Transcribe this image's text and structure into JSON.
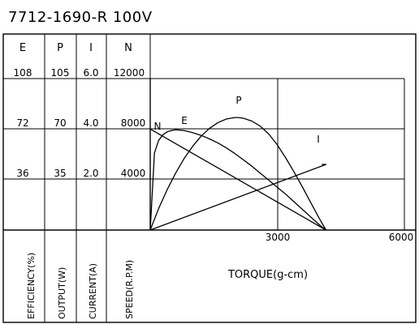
{
  "title": "7712-1690-R   100V",
  "column_headers": [
    "E",
    "P",
    "I",
    "N"
  ],
  "rows": [
    [
      "108",
      "105",
      "6.0",
      "12000"
    ],
    [
      "72",
      "70",
      "4.0",
      "8000"
    ],
    [
      "36",
      "35",
      "2.0",
      "4000"
    ]
  ],
  "axis_names": [
    "EFFICIENCY(%)",
    "OUTPUT(W)",
    "CURRENT(A)",
    "SPEED(R.P.M)"
  ],
  "xlabel": "TORQUE(g-cm)",
  "x_ticks": [
    "3000",
    "6000"
  ],
  "chart_data": {
    "type": "line",
    "title": "7712-1690-R   100V",
    "xlabel": "TORQUE(g-cm)",
    "xlim": [
      0,
      6000
    ],
    "grid": true,
    "axes": [
      {
        "key": "E",
        "name": "EFFICIENCY(%)",
        "ticks": [
          36,
          72,
          108
        ],
        "range": [
          0,
          108
        ]
      },
      {
        "key": "P",
        "name": "OUTPUT(W)",
        "ticks": [
          35,
          70,
          105
        ],
        "range": [
          0,
          105
        ]
      },
      {
        "key": "I",
        "name": "CURRENT(A)",
        "ticks": [
          2.0,
          4.0,
          6.0
        ],
        "range": [
          0,
          6
        ]
      },
      {
        "key": "N",
        "name": "SPEED(R.P.M)",
        "ticks": [
          4000,
          8000,
          12000
        ],
        "range": [
          0,
          12000
        ]
      }
    ],
    "series": [
      {
        "name": "N",
        "axis": "N",
        "x": [
          0,
          4150
        ],
        "y": [
          8000,
          0
        ]
      },
      {
        "name": "I",
        "axis": "I",
        "x": [
          0,
          4150,
          4050
        ],
        "y": [
          0.0,
          2.6,
          2.6
        ]
      },
      {
        "name": "P",
        "axis": "P",
        "x": [
          0,
          200,
          400,
          600,
          800,
          1000,
          1200,
          1400,
          1600,
          1800,
          2000,
          2075,
          2200,
          2400,
          2600,
          2800,
          3000,
          3200,
          3400,
          3600,
          3800,
          4000,
          4150
        ],
        "y": [
          0,
          15.0,
          28.0,
          39.5,
          49.5,
          58.0,
          65.0,
          70.5,
          74.5,
          77.0,
          78.0,
          78.0,
          77.5,
          75.5,
          72.0,
          66.5,
          59.0,
          50.0,
          40.0,
          29.5,
          18.5,
          7.5,
          0
        ]
      },
      {
        "name": "E",
        "axis": "E",
        "x": [
          0,
          100,
          200,
          300,
          400,
          500,
          600,
          800,
          1000,
          1200,
          1400,
          1600,
          1800,
          2000,
          2200,
          2400,
          2600,
          2800,
          3000,
          3200,
          3400,
          3600,
          3800,
          4000,
          4150
        ],
        "y": [
          0,
          55.0,
          64.0,
          68.0,
          70.0,
          71.0,
          71.5,
          71.0,
          69.5,
          67.5,
          65.0,
          62.0,
          58.5,
          54.5,
          50.0,
          45.5,
          40.5,
          35.5,
          30.5,
          25.5,
          20.0,
          14.5,
          9.0,
          3.5,
          0
        ]
      }
    ],
    "series_label_texts": [
      "N",
      "E",
      "P",
      "I"
    ]
  }
}
